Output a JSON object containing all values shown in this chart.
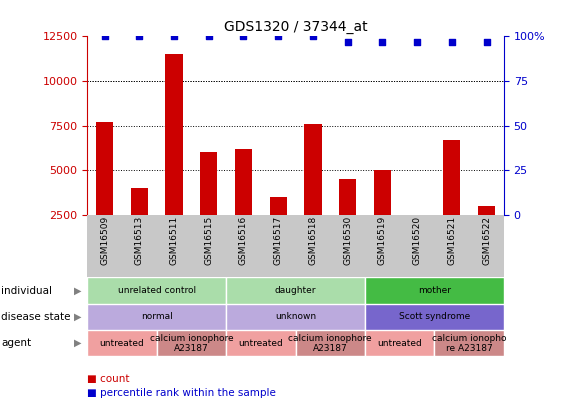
{
  "title": "GDS1320 / 37344_at",
  "samples": [
    "GSM16509",
    "GSM16513",
    "GSM16511",
    "GSM16515",
    "GSM16516",
    "GSM16517",
    "GSM16518",
    "GSM16530",
    "GSM16519",
    "GSM16520",
    "GSM16521",
    "GSM16522"
  ],
  "counts": [
    7700,
    4000,
    11500,
    6000,
    6200,
    3500,
    7600,
    4500,
    5000,
    2300,
    6700,
    3000
  ],
  "percentile": [
    100,
    100,
    100,
    100,
    100,
    100,
    100,
    97,
    97,
    97,
    97,
    97
  ],
  "bar_color": "#cc0000",
  "dot_color": "#0000cc",
  "ylim_left": [
    2500,
    12500
  ],
  "ylim_right": [
    0,
    100
  ],
  "yticks_left": [
    2500,
    5000,
    7500,
    10000,
    12500
  ],
  "yticks_right": [
    0,
    25,
    50,
    75,
    100
  ],
  "dotted_lines": [
    5000,
    7500,
    10000
  ],
  "individual_groups": [
    {
      "label": "unrelated control",
      "start": 0,
      "end": 4,
      "color": "#aaddaa"
    },
    {
      "label": "daughter",
      "start": 4,
      "end": 8,
      "color": "#aaddaa"
    },
    {
      "label": "mother",
      "start": 8,
      "end": 12,
      "color": "#44bb44"
    }
  ],
  "disease_groups": [
    {
      "label": "normal",
      "start": 0,
      "end": 4,
      "color": "#bbaadd"
    },
    {
      "label": "unknown",
      "start": 4,
      "end": 8,
      "color": "#bbaadd"
    },
    {
      "label": "Scott syndrome",
      "start": 8,
      "end": 12,
      "color": "#7766cc"
    }
  ],
  "agent_groups": [
    {
      "label": "untreated",
      "start": 0,
      "end": 2,
      "color": "#f0a0a0"
    },
    {
      "label": "calcium ionophore\nA23187",
      "start": 2,
      "end": 4,
      "color": "#cc8888"
    },
    {
      "label": "untreated",
      "start": 4,
      "end": 6,
      "color": "#f0a0a0"
    },
    {
      "label": "calcium ionophore\nA23187",
      "start": 6,
      "end": 8,
      "color": "#cc8888"
    },
    {
      "label": "untreated",
      "start": 8,
      "end": 10,
      "color": "#f0a0a0"
    },
    {
      "label": "calcium ionopho\nre A23187",
      "start": 10,
      "end": 12,
      "color": "#cc8888"
    }
  ],
  "row_labels": [
    "individual",
    "disease state",
    "agent"
  ],
  "legend_items": [
    {
      "label": "count",
      "color": "#cc0000"
    },
    {
      "label": "percentile rank within the sample",
      "color": "#0000cc"
    }
  ],
  "background_color": "#ffffff",
  "tick_label_color_left": "#cc0000",
  "tick_label_color_right": "#0000cc",
  "sample_area_color": "#c8c8c8",
  "plot_bg_color": "#ffffff"
}
